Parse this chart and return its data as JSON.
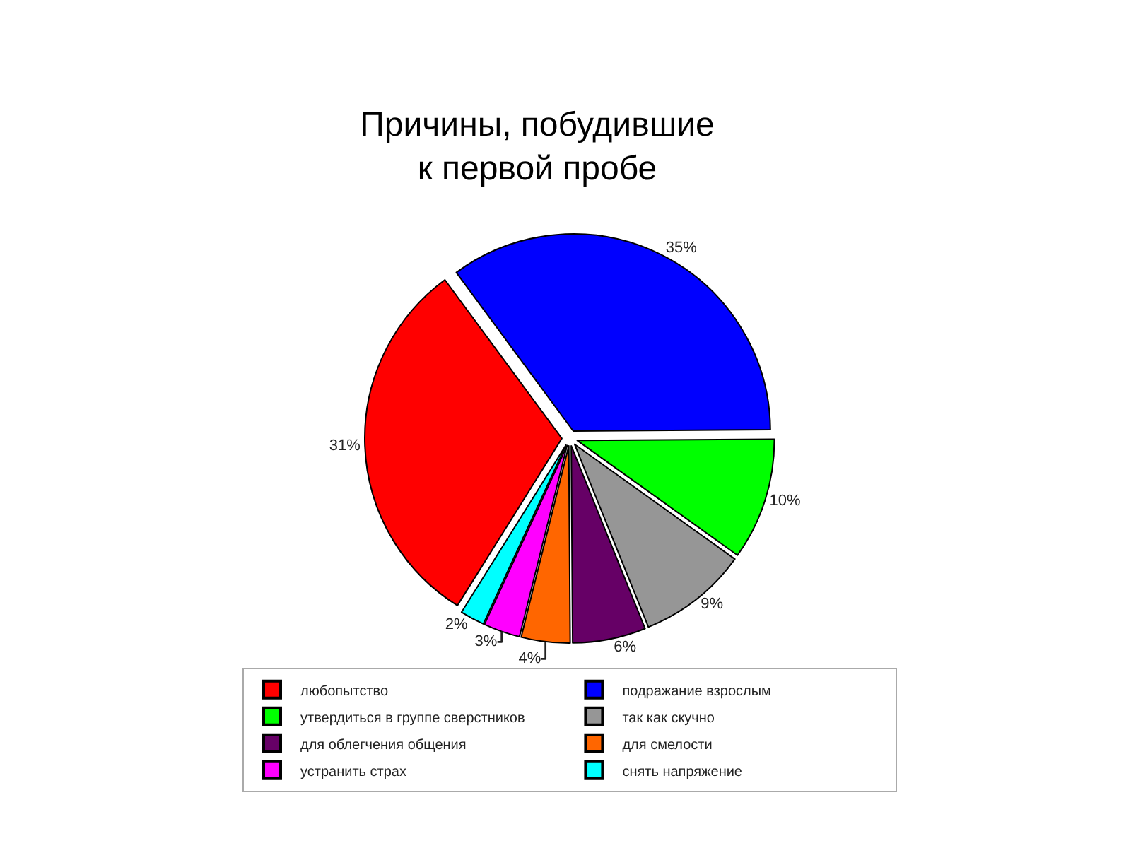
{
  "chart_data": {
    "type": "pie",
    "title": "Причины, побудившие\nк первой пробе",
    "categories": [
      "любопытство",
      "подражание взрослым",
      "утвердиться в группе сверстников",
      "так как скучно",
      "для облегчения общения",
      "для смелости",
      "устранить страх",
      "снять напряжение"
    ],
    "values": [
      31,
      35,
      10,
      9,
      6,
      4,
      3,
      2
    ],
    "value_labels": [
      "31%",
      "35%",
      "10%",
      "9%",
      "6%",
      "4%",
      "3%",
      "2%"
    ],
    "colors": [
      "#ff0000",
      "#0000ff",
      "#00ff00",
      "#969696",
      "#660066",
      "#ff6600",
      "#ff00ff",
      "#00ffff"
    ],
    "legend": "bottom"
  }
}
